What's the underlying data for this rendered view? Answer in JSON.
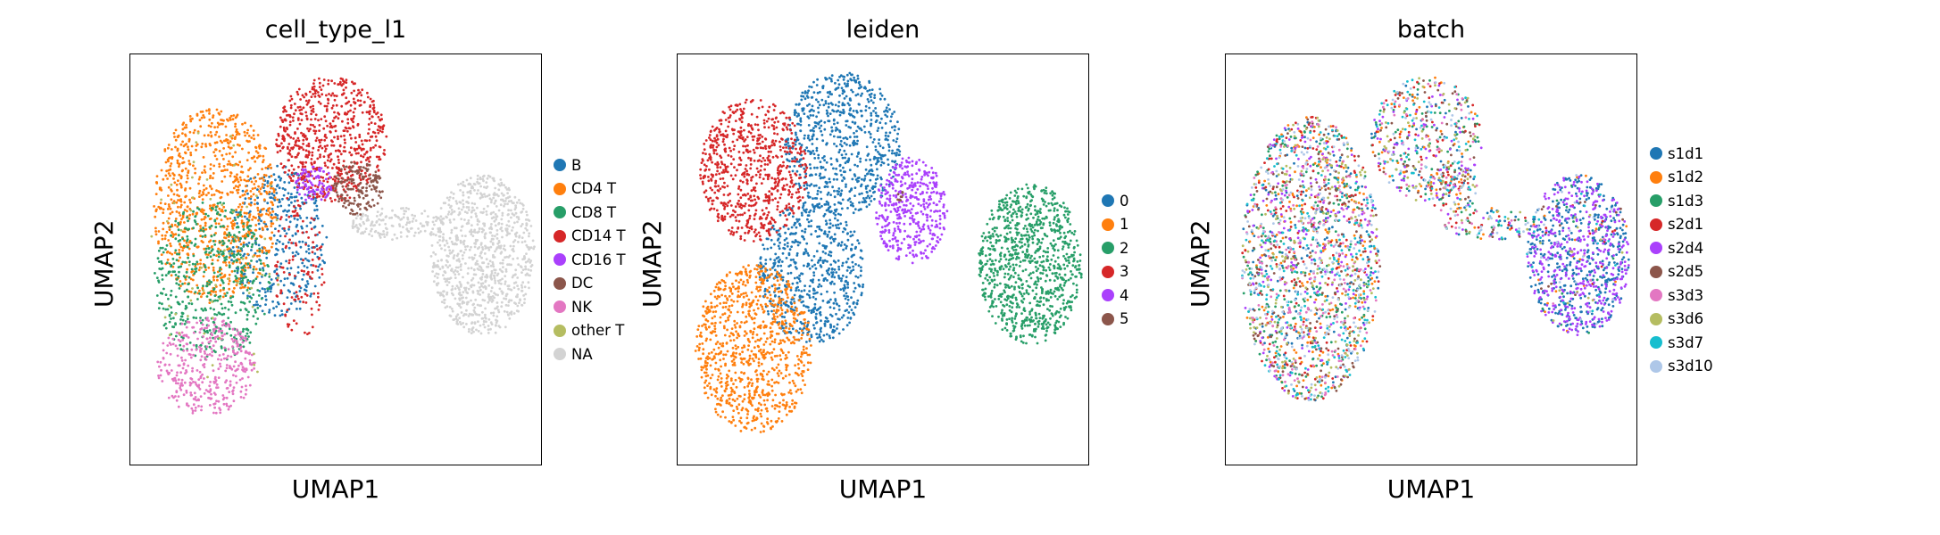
{
  "chart_data": [
    {
      "type": "scatter",
      "title": "cell_type_l1",
      "xlabel": "UMAP1",
      "ylabel": "UMAP2",
      "xticks": [],
      "yticks": [],
      "legend_position": "right",
      "legend": [
        {
          "label": "B",
          "color": "#1f77b4"
        },
        {
          "label": "CD4 T",
          "color": "#ff7f0e"
        },
        {
          "label": "CD8 T",
          "color": "#279e68"
        },
        {
          "label": "CD14 T",
          "color": "#d62728"
        },
        {
          "label": "CD16 T",
          "color": "#aa40fc"
        },
        {
          "label": "DC",
          "color": "#8c564b"
        },
        {
          "label": "NK",
          "color": "#e377c2"
        },
        {
          "label": "other T",
          "color": "#b5bd61"
        },
        {
          "label": "NA",
          "color": "#d3d3d3"
        }
      ]
    },
    {
      "type": "scatter",
      "title": "leiden",
      "xlabel": "UMAP1",
      "ylabel": "UMAP2",
      "xticks": [],
      "yticks": [],
      "legend_position": "right",
      "legend": [
        {
          "label": "0",
          "color": "#1f77b4"
        },
        {
          "label": "1",
          "color": "#ff7f0e"
        },
        {
          "label": "2",
          "color": "#279e68"
        },
        {
          "label": "3",
          "color": "#d62728"
        },
        {
          "label": "4",
          "color": "#aa40fc"
        },
        {
          "label": "5",
          "color": "#8c564b"
        }
      ]
    },
    {
      "type": "scatter",
      "title": "batch",
      "xlabel": "UMAP1",
      "ylabel": "UMAP2",
      "xticks": [],
      "yticks": [],
      "legend_position": "right",
      "legend": [
        {
          "label": "s1d1",
          "color": "#1f77b4"
        },
        {
          "label": "s1d2",
          "color": "#ff7f0e"
        },
        {
          "label": "s1d3",
          "color": "#279e68"
        },
        {
          "label": "s2d1",
          "color": "#d62728"
        },
        {
          "label": "s2d4",
          "color": "#aa40fc"
        },
        {
          "label": "s2d5",
          "color": "#8c564b"
        },
        {
          "label": "s3d3",
          "color": "#e377c2"
        },
        {
          "label": "s3d6",
          "color": "#b5bd61"
        },
        {
          "label": "s3d7",
          "color": "#17becf"
        },
        {
          "label": "s3d10",
          "color": "#aec7e8"
        }
      ]
    }
  ]
}
